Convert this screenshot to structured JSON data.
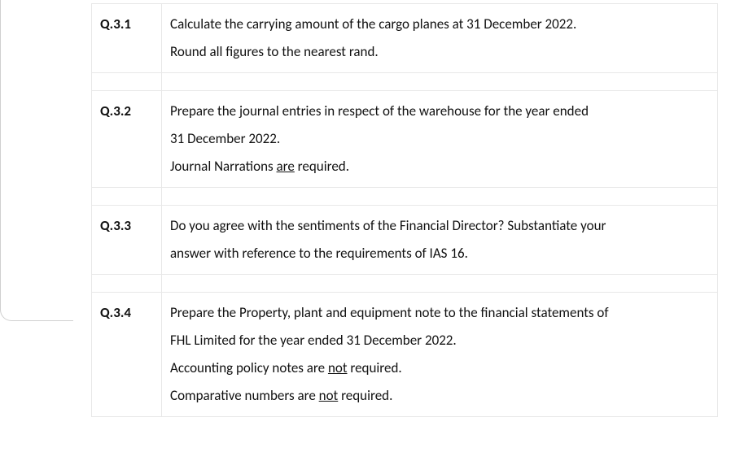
{
  "table": {
    "rows": [
      {
        "label": "Q.3.1",
        "lines": [
          {
            "text": "Calculate the carrying amount of the cargo planes at 31 December 2022."
          },
          {
            "text": "Round all figures to the nearest rand."
          }
        ]
      },
      {
        "label": "Q.3.2",
        "lines": [
          {
            "text": "Prepare the journal entries in respect of the warehouse for the year ended"
          },
          {
            "text": "31 December 2022."
          },
          {
            "segments": [
              {
                "text": "Journal Narrations "
              },
              {
                "text": "are",
                "underline": true
              },
              {
                "text": " required."
              }
            ]
          }
        ]
      },
      {
        "label": "Q.3.3",
        "lines": [
          {
            "text": "Do you agree with the sentiments of the Financial Director? Substantiate your"
          },
          {
            "text": "answer with reference to the requirements of IAS 16."
          }
        ]
      },
      {
        "label": "Q.3.4",
        "lines": [
          {
            "text": "Prepare the Property, plant and equipment note to the financial statements of"
          },
          {
            "text": "FHL Limited for the year ended 31 December 2022."
          },
          {
            "segments": [
              {
                "text": "Accounting policy notes are "
              },
              {
                "text": "not",
                "underline": true
              },
              {
                "text": " required."
              }
            ]
          },
          {
            "segments": [
              {
                "text": "Comparative numbers are "
              },
              {
                "text": "not",
                "underline": true
              },
              {
                "text": " required."
              }
            ]
          }
        ]
      }
    ]
  },
  "style": {
    "border_color": "#e8e8e8",
    "text_color": "#111111",
    "font_size_pt": 12,
    "label_weight": 700
  }
}
